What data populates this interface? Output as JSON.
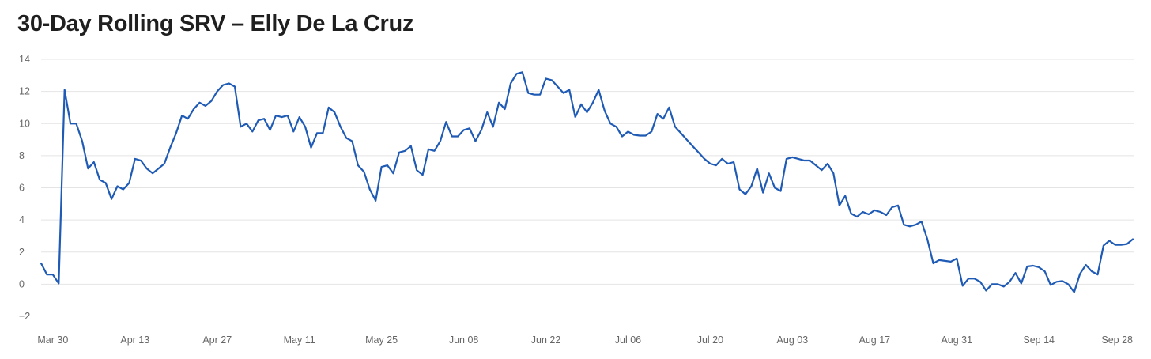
{
  "chart_data": {
    "type": "line",
    "title": "30-Day Rolling SRV – Elly De La Cruz",
    "xlabel": "",
    "ylabel": "",
    "ylim": [
      -2,
      14
    ],
    "grid": true,
    "y_ticks": [
      "14",
      "12",
      "10",
      "8",
      "6",
      "4",
      "2",
      "0",
      "−2"
    ],
    "x_ticks": [
      "Mar 30",
      "Apr 13",
      "Apr 27",
      "May 11",
      "May 25",
      "Jun 08",
      "Jun 22",
      "Jul 06",
      "Jul 20",
      "Aug 03",
      "Aug 17",
      "Aug 31",
      "Sep 14",
      "Sep 28"
    ],
    "line_color": "#1f5bb5",
    "series": [
      {
        "x_start": "Mar 28",
        "values": [
          1.3,
          0.6,
          0.6,
          0.05,
          12.1,
          10.0,
          10.0,
          8.9,
          7.2,
          7.6,
          6.5,
          6.3,
          5.3,
          6.1,
          5.9,
          6.3,
          7.8,
          7.7,
          7.2,
          6.9,
          7.2,
          7.5,
          8.5,
          9.4,
          10.5,
          10.3,
          10.9,
          11.3,
          11.1,
          11.4,
          12.0,
          12.4,
          12.5,
          12.3,
          9.8,
          10.0,
          9.5,
          10.2,
          10.3,
          9.6,
          10.5,
          10.4,
          10.5,
          9.5,
          10.4,
          9.8,
          8.5,
          9.4,
          9.4,
          11.0,
          10.7,
          9.8,
          9.1,
          8.9,
          7.4,
          7.0,
          5.9,
          5.2,
          7.3,
          7.4,
          6.9,
          8.2,
          8.3,
          8.6,
          7.1,
          6.8,
          8.4,
          8.3,
          8.9,
          10.1,
          9.2,
          9.2,
          9.6,
          9.7,
          8.9,
          9.6,
          10.7,
          9.8,
          11.3,
          10.9,
          12.5,
          13.1,
          13.2,
          11.9,
          11.8,
          11.8,
          12.8,
          12.7,
          12.3,
          11.9,
          12.1,
          10.4,
          11.2,
          10.7,
          11.3,
          12.1,
          10.8,
          10.0,
          9.8,
          9.2,
          9.5,
          9.3,
          9.25,
          9.25,
          9.5,
          10.6,
          10.3,
          11.0,
          9.8,
          9.4,
          9.0,
          8.6,
          8.2,
          7.8,
          7.5,
          7.4,
          7.8,
          7.5,
          7.6,
          5.9,
          5.6,
          6.1,
          7.2,
          5.7,
          6.9,
          6.0,
          5.8,
          7.8,
          7.9,
          7.8,
          7.7,
          7.7,
          7.4,
          7.1,
          7.5,
          6.9,
          4.9,
          5.5,
          4.4,
          4.2,
          4.5,
          4.35,
          4.6,
          4.5,
          4.3,
          4.8,
          4.9,
          3.7,
          3.6,
          3.7,
          3.9,
          2.8,
          1.3,
          1.5,
          1.45,
          1.4,
          1.6,
          -0.1,
          0.35,
          0.35,
          0.15,
          -0.4,
          0.0,
          0.0,
          -0.15,
          0.15,
          0.7,
          0.05,
          1.1,
          1.15,
          1.05,
          0.8,
          -0.05,
          0.15,
          0.2,
          0.0,
          -0.5,
          0.65,
          1.2,
          0.8,
          0.6,
          2.4,
          2.7,
          2.45,
          2.45,
          2.5,
          2.8
        ]
      }
    ]
  }
}
